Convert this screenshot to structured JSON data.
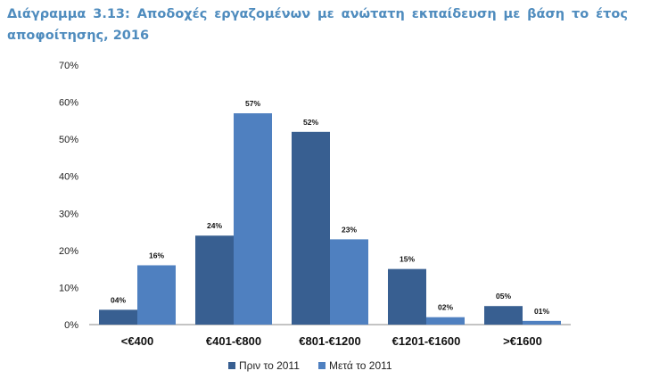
{
  "title": "Διάγραμμα 3.13: Αποδοχές εργαζομένων με ανώτατη εκπαίδευση με βάση το έτος αποφοίτησης, 2016",
  "colors": {
    "series_1": "#385f91",
    "series_2": "#4f80c0",
    "axis": "#888888",
    "title": "#4f8cbe"
  },
  "chart_data": {
    "type": "bar",
    "title": "Διάγραμμα 3.13: Αποδοχές εργαζομένων με ανώτατη εκπαίδευση με βάση το έτος αποφοίτησης, 2016",
    "xlabel": "",
    "ylabel": "",
    "ylim": [
      0,
      70
    ],
    "yticks": [
      "0%",
      "10%",
      "20%",
      "30%",
      "40%",
      "50%",
      "60%",
      "70%"
    ],
    "categories": [
      "<€400",
      "€401-€800",
      "€801-€1200",
      "€1201-€1600",
      ">€1600"
    ],
    "series": [
      {
        "name": "Πριν το 2011",
        "values": [
          4,
          24,
          52,
          15,
          5
        ],
        "labels": [
          "04%",
          "24%",
          "52%",
          "15%",
          "05%"
        ]
      },
      {
        "name": "Μετά το 2011",
        "values": [
          16,
          57,
          23,
          2,
          1
        ],
        "labels": [
          "16%",
          "57%",
          "23%",
          "02%",
          "01%"
        ]
      }
    ],
    "grid": false,
    "legend": "bottom"
  }
}
